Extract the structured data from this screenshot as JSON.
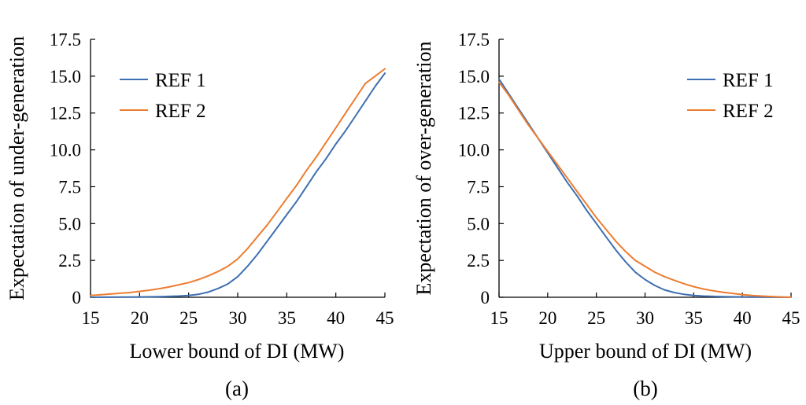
{
  "chart_data": [
    {
      "type": "line",
      "panel_label": "(a)",
      "xlabel": "Lower bound of DI (MW)",
      "ylabel": "Expectation of under-generation",
      "xlim": [
        15,
        45
      ],
      "ylim": [
        0,
        17.5
      ],
      "xticks": [
        "15",
        "20",
        "25",
        "30",
        "35",
        "40",
        "45"
      ],
      "yticks": [
        "0",
        "2.5",
        "5.0",
        "7.5",
        "10.0",
        "12.5",
        "15.0",
        "17.5"
      ],
      "legend_position": "top-left",
      "grid": false,
      "series": [
        {
          "name": "REF 1",
          "color": "#3e6fb0",
          "x": [
            15,
            20,
            22,
            24,
            25,
            26,
            27,
            28,
            29,
            30,
            31,
            32,
            33,
            34,
            35,
            36,
            37,
            38,
            39,
            40,
            41,
            42,
            43,
            44,
            45
          ],
          "y": [
            0.0,
            0.02,
            0.04,
            0.08,
            0.12,
            0.2,
            0.35,
            0.6,
            0.9,
            1.4,
            2.1,
            2.9,
            3.8,
            4.7,
            5.6,
            6.5,
            7.5,
            8.5,
            9.4,
            10.4,
            11.3,
            12.3,
            13.3,
            14.3,
            15.2
          ]
        },
        {
          "name": "REF 2",
          "color": "#ed7d31",
          "x": [
            15,
            17,
            19,
            20,
            21,
            22,
            23,
            24,
            25,
            26,
            27,
            28,
            29,
            30,
            31,
            32,
            33,
            34,
            35,
            36,
            37,
            38,
            39,
            40,
            41,
            42,
            43,
            44,
            45
          ],
          "y": [
            0.12,
            0.22,
            0.32,
            0.4,
            0.48,
            0.58,
            0.7,
            0.85,
            1.0,
            1.2,
            1.45,
            1.75,
            2.1,
            2.6,
            3.3,
            4.1,
            4.9,
            5.8,
            6.7,
            7.6,
            8.6,
            9.5,
            10.5,
            11.5,
            12.5,
            13.5,
            14.5,
            15.0,
            15.5
          ]
        }
      ]
    },
    {
      "type": "line",
      "panel_label": "(b)",
      "xlabel": "Upper bound of DI (MW)",
      "ylabel": "Expectation of over-generation",
      "xlim": [
        15,
        45
      ],
      "ylim": [
        0,
        17.5
      ],
      "xticks": [
        "15",
        "20",
        "25",
        "30",
        "35",
        "40",
        "45"
      ],
      "yticks": [
        "0",
        "2.5",
        "5.0",
        "7.5",
        "10.0",
        "12.5",
        "15.0",
        "17.5"
      ],
      "legend_position": "top-right",
      "grid": false,
      "series": [
        {
          "name": "REF 1",
          "color": "#3e6fb0",
          "x": [
            15,
            16,
            17,
            18,
            19,
            20,
            21,
            22,
            23,
            24,
            25,
            26,
            27,
            28,
            29,
            30,
            31,
            32,
            33,
            34,
            35,
            36,
            38,
            40,
            42,
            45
          ],
          "y": [
            14.8,
            13.8,
            12.8,
            11.8,
            10.8,
            9.8,
            8.8,
            7.8,
            6.9,
            5.9,
            5.0,
            4.1,
            3.2,
            2.4,
            1.7,
            1.2,
            0.8,
            0.5,
            0.32,
            0.2,
            0.12,
            0.08,
            0.04,
            0.02,
            0.01,
            0.0
          ]
        },
        {
          "name": "REF 2",
          "color": "#ed7d31",
          "x": [
            15,
            16,
            17,
            18,
            19,
            20,
            21,
            22,
            23,
            24,
            25,
            26,
            27,
            28,
            29,
            30,
            31,
            32,
            33,
            34,
            35,
            36,
            37,
            38,
            39,
            40,
            41,
            42,
            43,
            44,
            45
          ],
          "y": [
            14.6,
            13.7,
            12.7,
            11.7,
            10.8,
            9.9,
            9.0,
            8.1,
            7.2,
            6.3,
            5.4,
            4.6,
            3.8,
            3.1,
            2.5,
            2.1,
            1.7,
            1.4,
            1.15,
            0.92,
            0.72,
            0.56,
            0.44,
            0.34,
            0.26,
            0.18,
            0.12,
            0.08,
            0.05,
            0.02,
            0.0
          ]
        }
      ]
    }
  ]
}
